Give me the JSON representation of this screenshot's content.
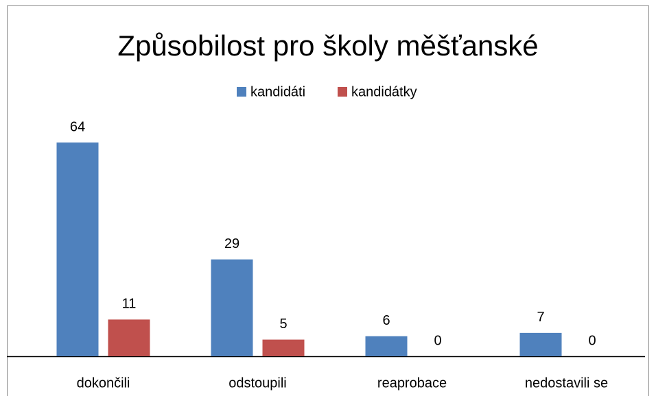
{
  "chart_data": {
    "type": "bar",
    "title": "Způsobilost pro školy měšťanské",
    "categories": [
      "dokončili",
      "odstoupili",
      "reaprobace",
      "nedostavili se"
    ],
    "series": [
      {
        "name": "kandidáti",
        "color": "#4f81bd",
        "values": [
          64,
          29,
          6,
          7
        ]
      },
      {
        "name": "kandidátky",
        "color": "#c0504d",
        "values": [
          11,
          5,
          0,
          0
        ]
      }
    ],
    "legend": "top"
  }
}
